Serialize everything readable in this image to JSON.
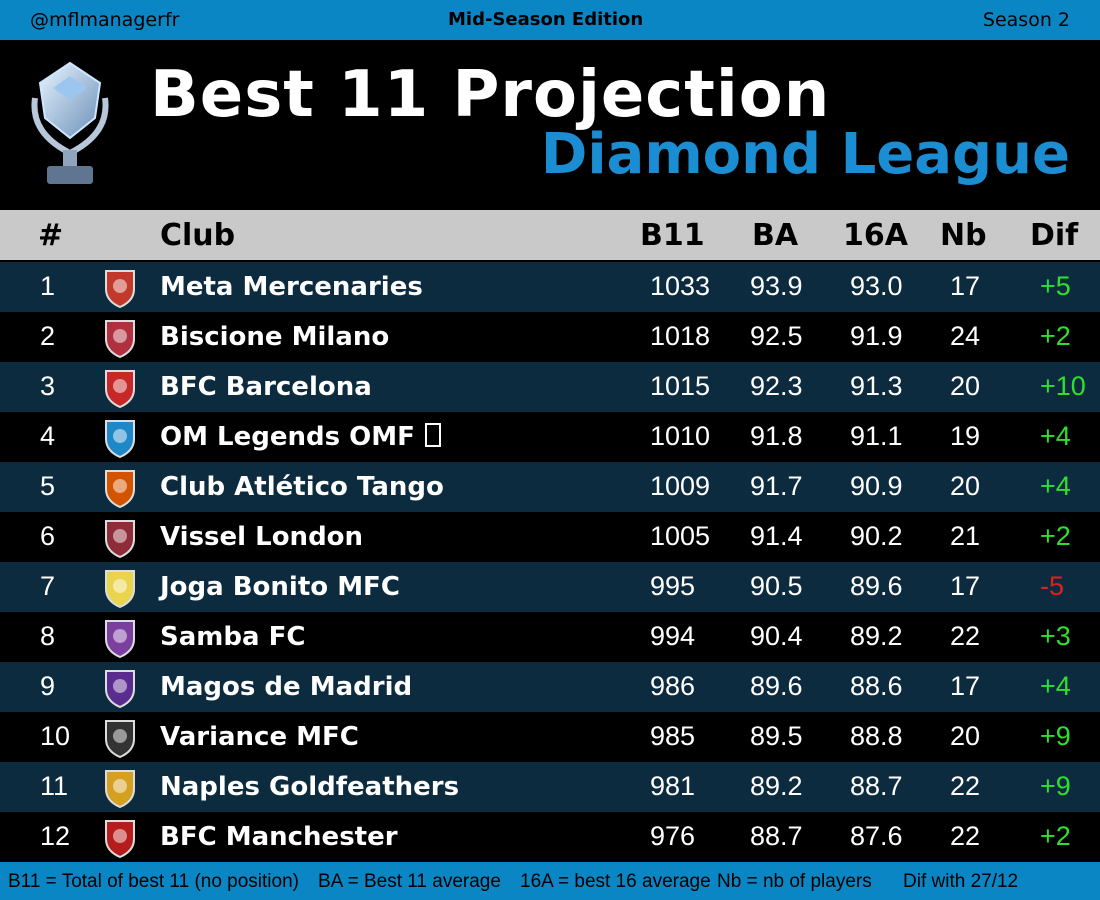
{
  "top_bar": {
    "handle": "@mflmanagerfr",
    "edition": "Mid-Season Edition",
    "season": "Season 2"
  },
  "header": {
    "title": "Best 11 Projection",
    "subtitle": "Diamond League"
  },
  "table": {
    "columns": [
      "#",
      "Club",
      "B11",
      "BA",
      "16A",
      "Nb",
      "Dif"
    ],
    "rows": [
      [
        "1",
        "Meta Mercenaries",
        "1033",
        "93.9",
        "93.0",
        "17",
        "+5"
      ],
      [
        "2",
        "Biscione Milano",
        "1018",
        "92.5",
        "91.9",
        "24",
        "+2"
      ],
      [
        "3",
        "BFC Barcelona",
        "1015",
        "92.3",
        "91.3",
        "20",
        "+10"
      ],
      [
        "4",
        "OM Legends OMF",
        "1010",
        "91.8",
        "91.1",
        "19",
        "+4"
      ],
      [
        "5",
        "Club Atlético Tango",
        "1009",
        "91.7",
        "90.9",
        "20",
        "+4"
      ],
      [
        "6",
        "Vissel London",
        "1005",
        "91.4",
        "90.2",
        "21",
        "+2"
      ],
      [
        "7",
        "Joga Bonito MFC",
        "995",
        "90.5",
        "89.6",
        "17",
        "-5"
      ],
      [
        "8",
        "Samba FC",
        "994",
        "90.4",
        "89.2",
        "22",
        "+3"
      ],
      [
        "9",
        "Magos de Madrid",
        "986",
        "89.6",
        "88.6",
        "17",
        "+4"
      ],
      [
        "10",
        "Variance MFC",
        "985",
        "89.5",
        "88.8",
        "20",
        "+9"
      ],
      [
        "11",
        "Naples Goldfeathers",
        "981",
        "89.2",
        "88.7",
        "22",
        "+9"
      ],
      [
        "12",
        "BFC Manchester",
        "976",
        "88.7",
        "87.6",
        "22",
        "+2"
      ]
    ]
  },
  "footer": {
    "legend": [
      "B11 = Total of best 11 (no position)",
      "BA = Best 11 average",
      "16A = best 16 average",
      "Nb = nb of players",
      "Dif with 27/12"
    ]
  }
}
